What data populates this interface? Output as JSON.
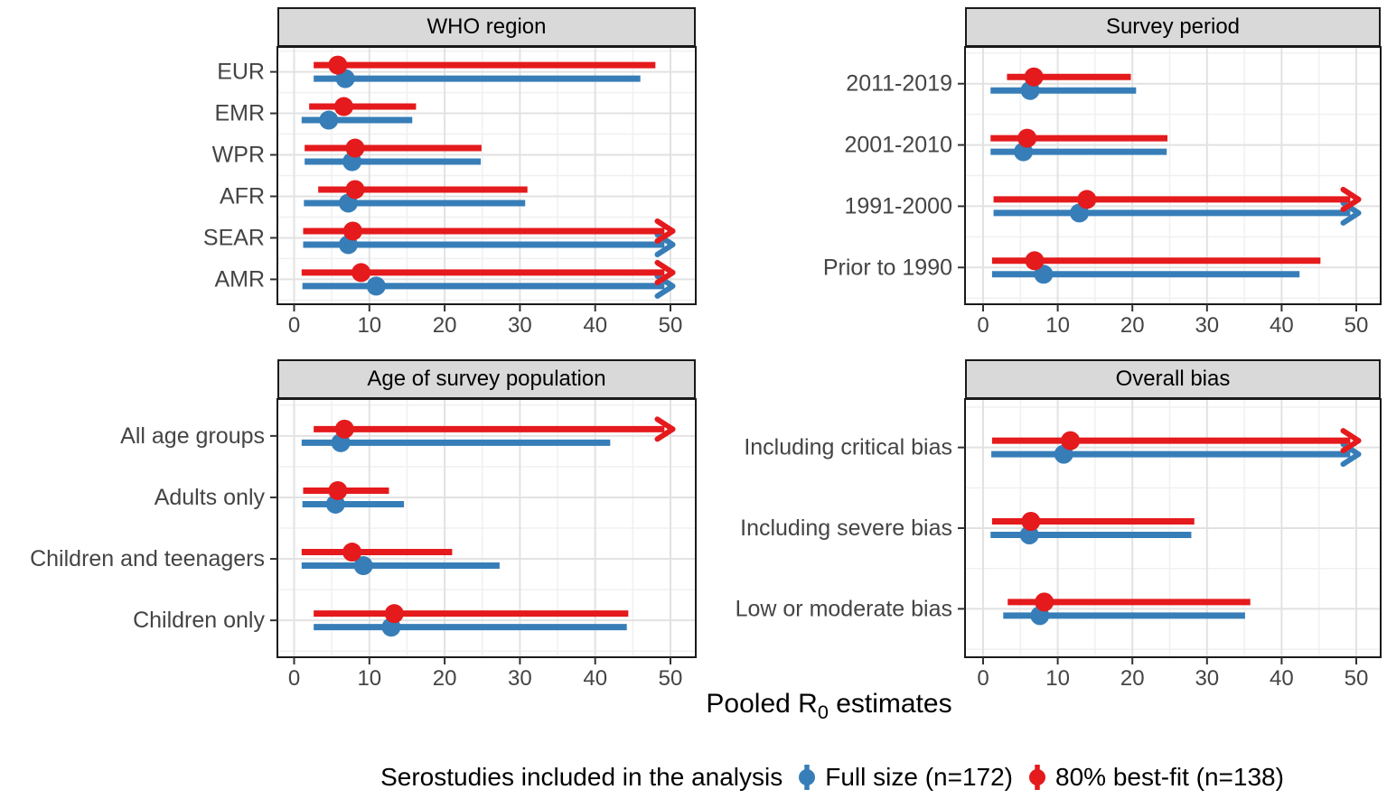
{
  "axis_title": {
    "prefix": "Pooled R",
    "sub": "0",
    "suffix": " estimates"
  },
  "legend": {
    "title": "Serostudies included in the analysis",
    "items": [
      {
        "label": "Full size (n=172)",
        "color": "#377eb8"
      },
      {
        "label": "80% best-fit (n=138)",
        "color": "#e41a1c"
      }
    ]
  },
  "chart_data": [
    {
      "type": "pointrange",
      "title": "WHO region",
      "xlim": [
        0,
        50
      ],
      "xticks": [
        0,
        10,
        20,
        30,
        40,
        50
      ],
      "xticks_minor": [
        5,
        15,
        25,
        35,
        45
      ],
      "categories": [
        "EUR",
        "EMR",
        "WPR",
        "AFR",
        "SEAR",
        "AMR"
      ],
      "series": [
        {
          "name": "80% best-fit (n=138)",
          "color": "#e41a1c",
          "points": [
            {
              "est": 5.8,
              "lo": 2.6,
              "hi": 48.0,
              "gt50": false
            },
            {
              "est": 6.6,
              "lo": 2.0,
              "hi": 16.2,
              "gt50": false
            },
            {
              "est": 8.1,
              "lo": 1.4,
              "hi": 24.9,
              "gt50": false
            },
            {
              "est": 8.1,
              "lo": 3.2,
              "hi": 31.0,
              "gt50": false
            },
            {
              "est": 7.8,
              "lo": 1.2,
              "hi": 50,
              "gt50": true
            },
            {
              "est": 8.9,
              "lo": 1.0,
              "hi": 50,
              "gt50": true
            }
          ]
        },
        {
          "name": "Full size (n=172)",
          "color": "#377eb8",
          "points": [
            {
              "est": 6.8,
              "lo": 2.6,
              "hi": 46.0,
              "gt50": false
            },
            {
              "est": 4.6,
              "lo": 1.0,
              "hi": 15.7,
              "gt50": false
            },
            {
              "est": 7.7,
              "lo": 1.4,
              "hi": 24.8,
              "gt50": false
            },
            {
              "est": 7.2,
              "lo": 1.3,
              "hi": 30.7,
              "gt50": false
            },
            {
              "est": 7.2,
              "lo": 1.2,
              "hi": 50,
              "gt50": true
            },
            {
              "est": 10.9,
              "lo": 1.1,
              "hi": 50,
              "gt50": true
            }
          ]
        }
      ]
    },
    {
      "type": "pointrange",
      "title": "Survey period",
      "xlim": [
        0,
        50
      ],
      "xticks": [
        0,
        10,
        20,
        30,
        40,
        50
      ],
      "xticks_minor": [
        5,
        15,
        25,
        35,
        45
      ],
      "categories": [
        "2011-2019",
        "2001-2010",
        "1991-2000",
        "Prior to 1990"
      ],
      "series": [
        {
          "name": "80% best-fit (n=138)",
          "color": "#e41a1c",
          "points": [
            {
              "est": 6.8,
              "lo": 3.2,
              "hi": 19.8,
              "gt50": false
            },
            {
              "est": 5.9,
              "lo": 1.0,
              "hi": 24.7,
              "gt50": false
            },
            {
              "est": 13.9,
              "lo": 1.4,
              "hi": 50,
              "gt50": true
            },
            {
              "est": 6.9,
              "lo": 1.2,
              "hi": 45.2,
              "gt50": false
            }
          ]
        },
        {
          "name": "Full size (n=172)",
          "color": "#377eb8",
          "points": [
            {
              "est": 6.3,
              "lo": 1.0,
              "hi": 20.5,
              "gt50": false
            },
            {
              "est": 5.4,
              "lo": 1.0,
              "hi": 24.6,
              "gt50": false
            },
            {
              "est": 12.9,
              "lo": 1.4,
              "hi": 50,
              "gt50": true
            },
            {
              "est": 8.1,
              "lo": 1.2,
              "hi": 42.4,
              "gt50": false
            }
          ]
        }
      ]
    },
    {
      "type": "pointrange",
      "title": "Age of survey population",
      "xlim": [
        0,
        50
      ],
      "xticks": [
        0,
        10,
        20,
        30,
        40,
        50
      ],
      "xticks_minor": [
        5,
        15,
        25,
        35,
        45
      ],
      "categories": [
        "All age groups",
        "Adults only",
        "Children and teenagers",
        "Children only"
      ],
      "series": [
        {
          "name": "80% best-fit (n=138)",
          "color": "#e41a1c",
          "points": [
            {
              "est": 6.7,
              "lo": 2.6,
              "hi": 50,
              "gt50": true
            },
            {
              "est": 5.8,
              "lo": 1.2,
              "hi": 12.6,
              "gt50": false
            },
            {
              "est": 7.7,
              "lo": 1.0,
              "hi": 21.0,
              "gt50": false
            },
            {
              "est": 13.3,
              "lo": 2.6,
              "hi": 44.4,
              "gt50": false
            }
          ]
        },
        {
          "name": "Full size (n=172)",
          "color": "#377eb8",
          "points": [
            {
              "est": 6.2,
              "lo": 1.0,
              "hi": 42.0,
              "gt50": false
            },
            {
              "est": 5.5,
              "lo": 1.1,
              "hi": 14.6,
              "gt50": false
            },
            {
              "est": 9.2,
              "lo": 1.0,
              "hi": 27.3,
              "gt50": false
            },
            {
              "est": 12.9,
              "lo": 2.6,
              "hi": 44.2,
              "gt50": false
            }
          ]
        }
      ]
    },
    {
      "type": "pointrange",
      "title": "Overall bias",
      "xlim": [
        0,
        50
      ],
      "xticks": [
        0,
        10,
        20,
        30,
        40,
        50
      ],
      "xticks_minor": [
        5,
        15,
        25,
        35,
        45
      ],
      "categories": [
        "Including critical bias",
        "Including severe bias",
        "Low or moderate bias"
      ],
      "series": [
        {
          "name": "80% best-fit (n=138)",
          "color": "#e41a1c",
          "points": [
            {
              "est": 11.7,
              "lo": 1.2,
              "hi": 50,
              "gt50": true
            },
            {
              "est": 6.4,
              "lo": 1.2,
              "hi": 28.3,
              "gt50": false
            },
            {
              "est": 8.2,
              "lo": 3.3,
              "hi": 35.8,
              "gt50": false
            }
          ]
        },
        {
          "name": "Full size (n=172)",
          "color": "#377eb8",
          "points": [
            {
              "est": 10.8,
              "lo": 1.1,
              "hi": 50,
              "gt50": true
            },
            {
              "est": 6.2,
              "lo": 1.0,
              "hi": 27.9,
              "gt50": false
            },
            {
              "est": 7.6,
              "lo": 2.7,
              "hi": 35.1,
              "gt50": false
            }
          ]
        }
      ]
    }
  ]
}
